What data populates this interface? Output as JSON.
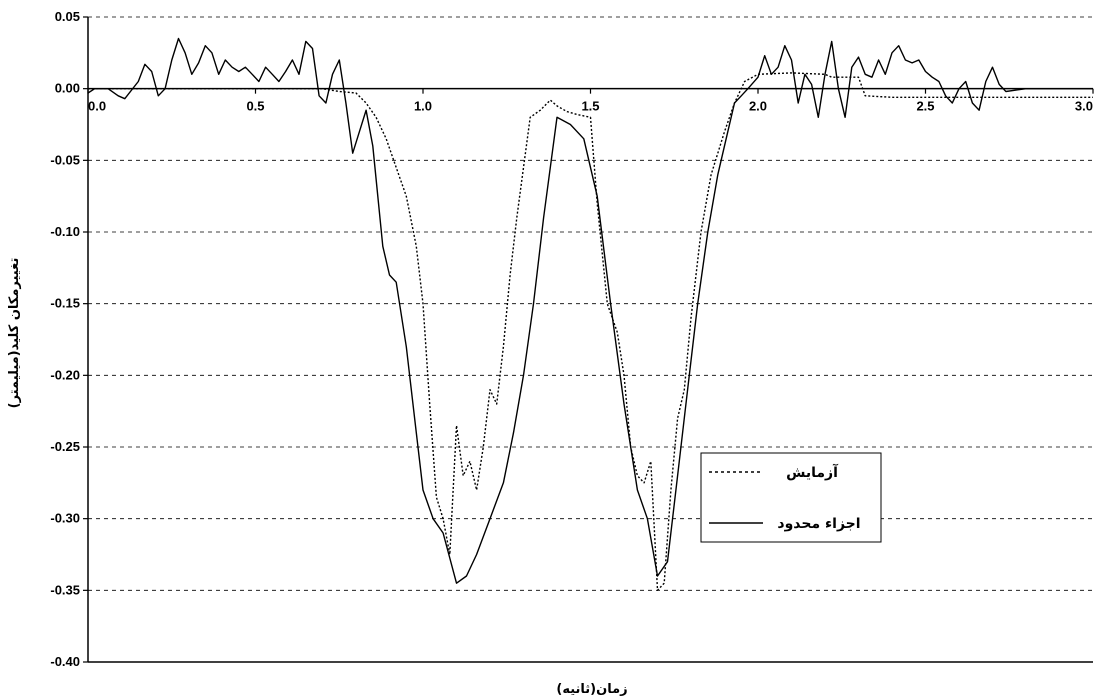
{
  "chart_data": {
    "type": "line",
    "title": "",
    "xlabel": "زمان(ثانیه)",
    "ylabel": "تغییرمکان کلید(میلیمتر)",
    "xlim": [
      0,
      3.0
    ],
    "ylim": [
      -0.4,
      0.05
    ],
    "x_ticks": [
      "0.0",
      "0.5",
      "1.0",
      "1.5",
      "2.0",
      "2.5",
      "3.0"
    ],
    "x_tick_values": [
      0,
      0.5,
      1.0,
      1.5,
      2.0,
      2.5,
      3.0
    ],
    "y_ticks": [
      "0.05",
      "0.00",
      "-0.05",
      "-0.10",
      "-0.15",
      "-0.20",
      "-0.25",
      "-0.30",
      "-0.35",
      "-0.40"
    ],
    "y_tick_values": [
      0.05,
      0.0,
      -0.05,
      -0.1,
      -0.15,
      -0.2,
      -0.25,
      -0.3,
      -0.35,
      -0.4
    ],
    "grid": "horizontal-dashed",
    "legend_position": "right-middle",
    "series": [
      {
        "name": "آزمایش",
        "style": "dotted",
        "color": "#000000",
        "points": [
          [
            0.0,
            0.0
          ],
          [
            0.1,
            0.0
          ],
          [
            0.2,
            0.0
          ],
          [
            0.3,
            0.0
          ],
          [
            0.4,
            0.0
          ],
          [
            0.5,
            0.0
          ],
          [
            0.6,
            0.0
          ],
          [
            0.7,
            0.0
          ],
          [
            0.75,
            -0.002
          ],
          [
            0.8,
            -0.003
          ],
          [
            0.83,
            -0.01
          ],
          [
            0.86,
            -0.02
          ],
          [
            0.89,
            -0.035
          ],
          [
            0.92,
            -0.055
          ],
          [
            0.95,
            -0.075
          ],
          [
            0.98,
            -0.11
          ],
          [
            1.0,
            -0.15
          ],
          [
            1.02,
            -0.22
          ],
          [
            1.04,
            -0.285
          ],
          [
            1.06,
            -0.3
          ],
          [
            1.08,
            -0.325
          ],
          [
            1.1,
            -0.235
          ],
          [
            1.12,
            -0.27
          ],
          [
            1.14,
            -0.26
          ],
          [
            1.16,
            -0.28
          ],
          [
            1.18,
            -0.25
          ],
          [
            1.2,
            -0.21
          ],
          [
            1.22,
            -0.22
          ],
          [
            1.24,
            -0.18
          ],
          [
            1.26,
            -0.13
          ],
          [
            1.28,
            -0.09
          ],
          [
            1.3,
            -0.055
          ],
          [
            1.32,
            -0.02
          ],
          [
            1.35,
            -0.015
          ],
          [
            1.38,
            -0.008
          ],
          [
            1.4,
            -0.012
          ],
          [
            1.43,
            -0.016
          ],
          [
            1.46,
            -0.018
          ],
          [
            1.5,
            -0.02
          ],
          [
            1.52,
            -0.08
          ],
          [
            1.55,
            -0.15
          ],
          [
            1.58,
            -0.17
          ],
          [
            1.6,
            -0.2
          ],
          [
            1.62,
            -0.25
          ],
          [
            1.64,
            -0.27
          ],
          [
            1.66,
            -0.275
          ],
          [
            1.68,
            -0.26
          ],
          [
            1.7,
            -0.35
          ],
          [
            1.72,
            -0.345
          ],
          [
            1.74,
            -0.28
          ],
          [
            1.76,
            -0.23
          ],
          [
            1.78,
            -0.21
          ],
          [
            1.8,
            -0.16
          ],
          [
            1.83,
            -0.1
          ],
          [
            1.86,
            -0.06
          ],
          [
            1.9,
            -0.03
          ],
          [
            1.93,
            -0.01
          ],
          [
            1.96,
            0.005
          ],
          [
            2.0,
            0.01
          ],
          [
            2.1,
            0.011
          ],
          [
            2.2,
            0.01
          ],
          [
            2.22,
            0.008
          ],
          [
            2.3,
            0.008
          ],
          [
            2.32,
            -0.005
          ],
          [
            2.4,
            -0.006
          ],
          [
            2.6,
            -0.006
          ],
          [
            2.8,
            -0.006
          ],
          [
            3.0,
            -0.006
          ]
        ]
      },
      {
        "name": "اجزاء محدود",
        "style": "solid",
        "color": "#000000",
        "points": [
          [
            0.0,
            -0.003
          ],
          [
            0.02,
            0.0
          ],
          [
            0.06,
            0.0
          ],
          [
            0.09,
            -0.005
          ],
          [
            0.11,
            -0.007
          ],
          [
            0.15,
            0.005
          ],
          [
            0.17,
            0.017
          ],
          [
            0.19,
            0.012
          ],
          [
            0.21,
            -0.005
          ],
          [
            0.23,
            0.0
          ],
          [
            0.25,
            0.02
          ],
          [
            0.27,
            0.035
          ],
          [
            0.29,
            0.025
          ],
          [
            0.31,
            0.01
          ],
          [
            0.33,
            0.018
          ],
          [
            0.35,
            0.03
          ],
          [
            0.37,
            0.025
          ],
          [
            0.39,
            0.01
          ],
          [
            0.41,
            0.02
          ],
          [
            0.43,
            0.015
          ],
          [
            0.45,
            0.012
          ],
          [
            0.47,
            0.015
          ],
          [
            0.49,
            0.01
          ],
          [
            0.51,
            0.005
          ],
          [
            0.53,
            0.015
          ],
          [
            0.55,
            0.01
          ],
          [
            0.57,
            0.005
          ],
          [
            0.59,
            0.012
          ],
          [
            0.61,
            0.02
          ],
          [
            0.63,
            0.01
          ],
          [
            0.65,
            0.033
          ],
          [
            0.67,
            0.028
          ],
          [
            0.69,
            -0.005
          ],
          [
            0.71,
            -0.01
          ],
          [
            0.73,
            0.01
          ],
          [
            0.75,
            0.02
          ],
          [
            0.77,
            -0.01
          ],
          [
            0.79,
            -0.045
          ],
          [
            0.81,
            -0.03
          ],
          [
            0.83,
            -0.015
          ],
          [
            0.85,
            -0.04
          ],
          [
            0.88,
            -0.11
          ],
          [
            0.9,
            -0.13
          ],
          [
            0.92,
            -0.135
          ],
          [
            0.95,
            -0.18
          ],
          [
            0.98,
            -0.24
          ],
          [
            1.0,
            -0.28
          ],
          [
            1.03,
            -0.3
          ],
          [
            1.06,
            -0.31
          ],
          [
            1.1,
            -0.345
          ],
          [
            1.13,
            -0.34
          ],
          [
            1.16,
            -0.325
          ],
          [
            1.2,
            -0.3
          ],
          [
            1.24,
            -0.275
          ],
          [
            1.27,
            -0.24
          ],
          [
            1.3,
            -0.2
          ],
          [
            1.33,
            -0.15
          ],
          [
            1.36,
            -0.09
          ],
          [
            1.4,
            -0.02
          ],
          [
            1.44,
            -0.025
          ],
          [
            1.48,
            -0.035
          ],
          [
            1.52,
            -0.075
          ],
          [
            1.56,
            -0.15
          ],
          [
            1.6,
            -0.22
          ],
          [
            1.64,
            -0.28
          ],
          [
            1.67,
            -0.3
          ],
          [
            1.7,
            -0.34
          ],
          [
            1.73,
            -0.33
          ],
          [
            1.76,
            -0.27
          ],
          [
            1.79,
            -0.21
          ],
          [
            1.82,
            -0.15
          ],
          [
            1.85,
            -0.1
          ],
          [
            1.88,
            -0.06
          ],
          [
            1.91,
            -0.03
          ],
          [
            1.93,
            -0.01
          ],
          [
            1.95,
            -0.005
          ],
          [
            1.97,
            0.0
          ],
          [
            2.0,
            0.008
          ],
          [
            2.02,
            0.023
          ],
          [
            2.04,
            0.01
          ],
          [
            2.06,
            0.015
          ],
          [
            2.08,
            0.03
          ],
          [
            2.1,
            0.02
          ],
          [
            2.12,
            -0.01
          ],
          [
            2.14,
            0.01
          ],
          [
            2.16,
            0.003
          ],
          [
            2.18,
            -0.02
          ],
          [
            2.2,
            0.01
          ],
          [
            2.22,
            0.033
          ],
          [
            2.24,
            0.0
          ],
          [
            2.26,
            -0.02
          ],
          [
            2.28,
            0.015
          ],
          [
            2.3,
            0.022
          ],
          [
            2.32,
            0.01
          ],
          [
            2.34,
            0.008
          ],
          [
            2.36,
            0.02
          ],
          [
            2.38,
            0.01
          ],
          [
            2.4,
            0.025
          ],
          [
            2.42,
            0.03
          ],
          [
            2.44,
            0.02
          ],
          [
            2.46,
            0.018
          ],
          [
            2.48,
            0.02
          ],
          [
            2.5,
            0.012
          ],
          [
            2.52,
            0.008
          ],
          [
            2.54,
            0.005
          ],
          [
            2.56,
            -0.005
          ],
          [
            2.58,
            -0.01
          ],
          [
            2.6,
            0.0
          ],
          [
            2.62,
            0.005
          ],
          [
            2.64,
            -0.01
          ],
          [
            2.66,
            -0.015
          ],
          [
            2.68,
            0.005
          ],
          [
            2.7,
            0.015
          ],
          [
            2.72,
            0.003
          ],
          [
            2.74,
            -0.002
          ],
          [
            2.8,
            0.0
          ],
          [
            3.0,
            0.0
          ]
        ]
      }
    ]
  }
}
